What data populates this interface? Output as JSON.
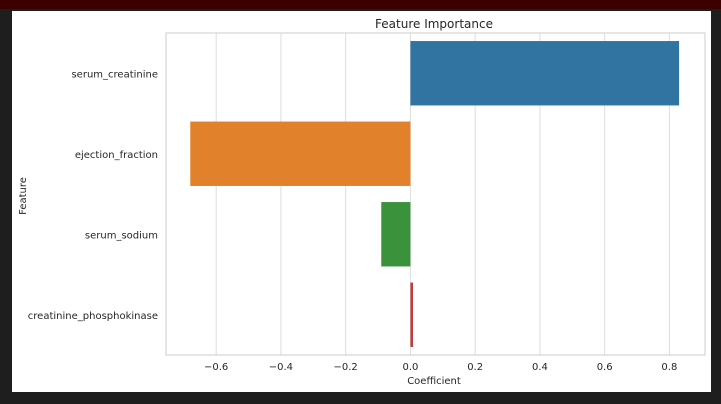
{
  "colors": {
    "background": "#1e1e1e",
    "top_strip": "#3d0000",
    "figure_bg": "#ffffff",
    "grid": "#dddddd",
    "spine": "#cccccc"
  },
  "chart_data": {
    "type": "bar",
    "orientation": "horizontal",
    "title": "Feature Importance",
    "xlabel": "Coefficient",
    "ylabel": "Feature",
    "categories": [
      "serum_creatinine",
      "ejection_fraction",
      "serum_sodium",
      "creatinine_phosphokinase"
    ],
    "values": [
      0.83,
      -0.68,
      -0.09,
      0.008
    ],
    "bar_colors": [
      "#3274a1",
      "#e1812c",
      "#3a923a",
      "#c03d3e"
    ],
    "xlim": [
      -0.755,
      0.91
    ],
    "xticks": [
      -0.6,
      -0.4,
      -0.2,
      0.0,
      0.2,
      0.4,
      0.6,
      0.8
    ],
    "xtick_labels": [
      "−0.6",
      "−0.4",
      "−0.2",
      "0.0",
      "0.2",
      "0.4",
      "0.6",
      "0.8"
    ],
    "grid": "vertical",
    "legend": "none"
  }
}
